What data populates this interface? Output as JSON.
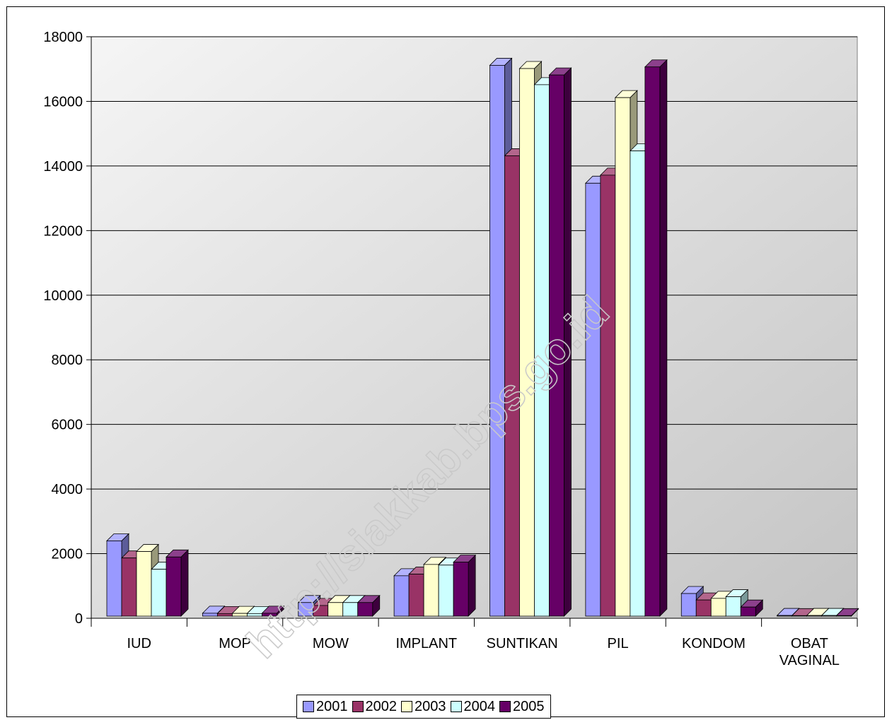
{
  "watermark": "http://siakkab.bps.go.id",
  "chart_data": {
    "type": "bar",
    "title": "",
    "xlabel": "",
    "ylabel": "",
    "ylim": [
      0,
      18000
    ],
    "yticks": [
      0,
      2000,
      4000,
      6000,
      8000,
      10000,
      12000,
      14000,
      16000,
      18000
    ],
    "ytick_labels": [
      "0",
      "2000",
      "4000",
      "6000",
      "8000",
      "10000",
      "12000",
      "14000",
      "16000",
      "18000"
    ],
    "grid": true,
    "legend_position": "bottom",
    "categories": [
      "IUD",
      "MOP",
      "MOW",
      "IMPLANT",
      "SUNTIKAN",
      "PIL",
      "KONDOM",
      "OBAT VAGINAL"
    ],
    "category_lines": [
      [
        "IUD"
      ],
      [
        "MOP"
      ],
      [
        "MOW"
      ],
      [
        "IMPLANT"
      ],
      [
        "SUNTIKAN"
      ],
      [
        "PIL"
      ],
      [
        "KONDOM"
      ],
      [
        "OBAT",
        "VAGINAL"
      ]
    ],
    "series": [
      {
        "name": "2001",
        "color": "#9999ff",
        "values": [
          2330,
          90,
          420,
          1250,
          17050,
          13400,
          700,
          20
        ]
      },
      {
        "name": "2002",
        "color": "#993366",
        "values": [
          1800,
          80,
          330,
          1300,
          14250,
          13650,
          500,
          15
        ]
      },
      {
        "name": "2003",
        "color": "#ffffcc",
        "values": [
          2000,
          85,
          420,
          1600,
          16950,
          16050,
          550,
          20
        ]
      },
      {
        "name": "2004",
        "color": "#ccffff",
        "values": [
          1450,
          80,
          420,
          1580,
          16450,
          14400,
          600,
          20
        ]
      },
      {
        "name": "2005",
        "color": "#660066",
        "values": [
          1830,
          90,
          420,
          1670,
          16750,
          17000,
          280,
          15
        ]
      }
    ]
  }
}
